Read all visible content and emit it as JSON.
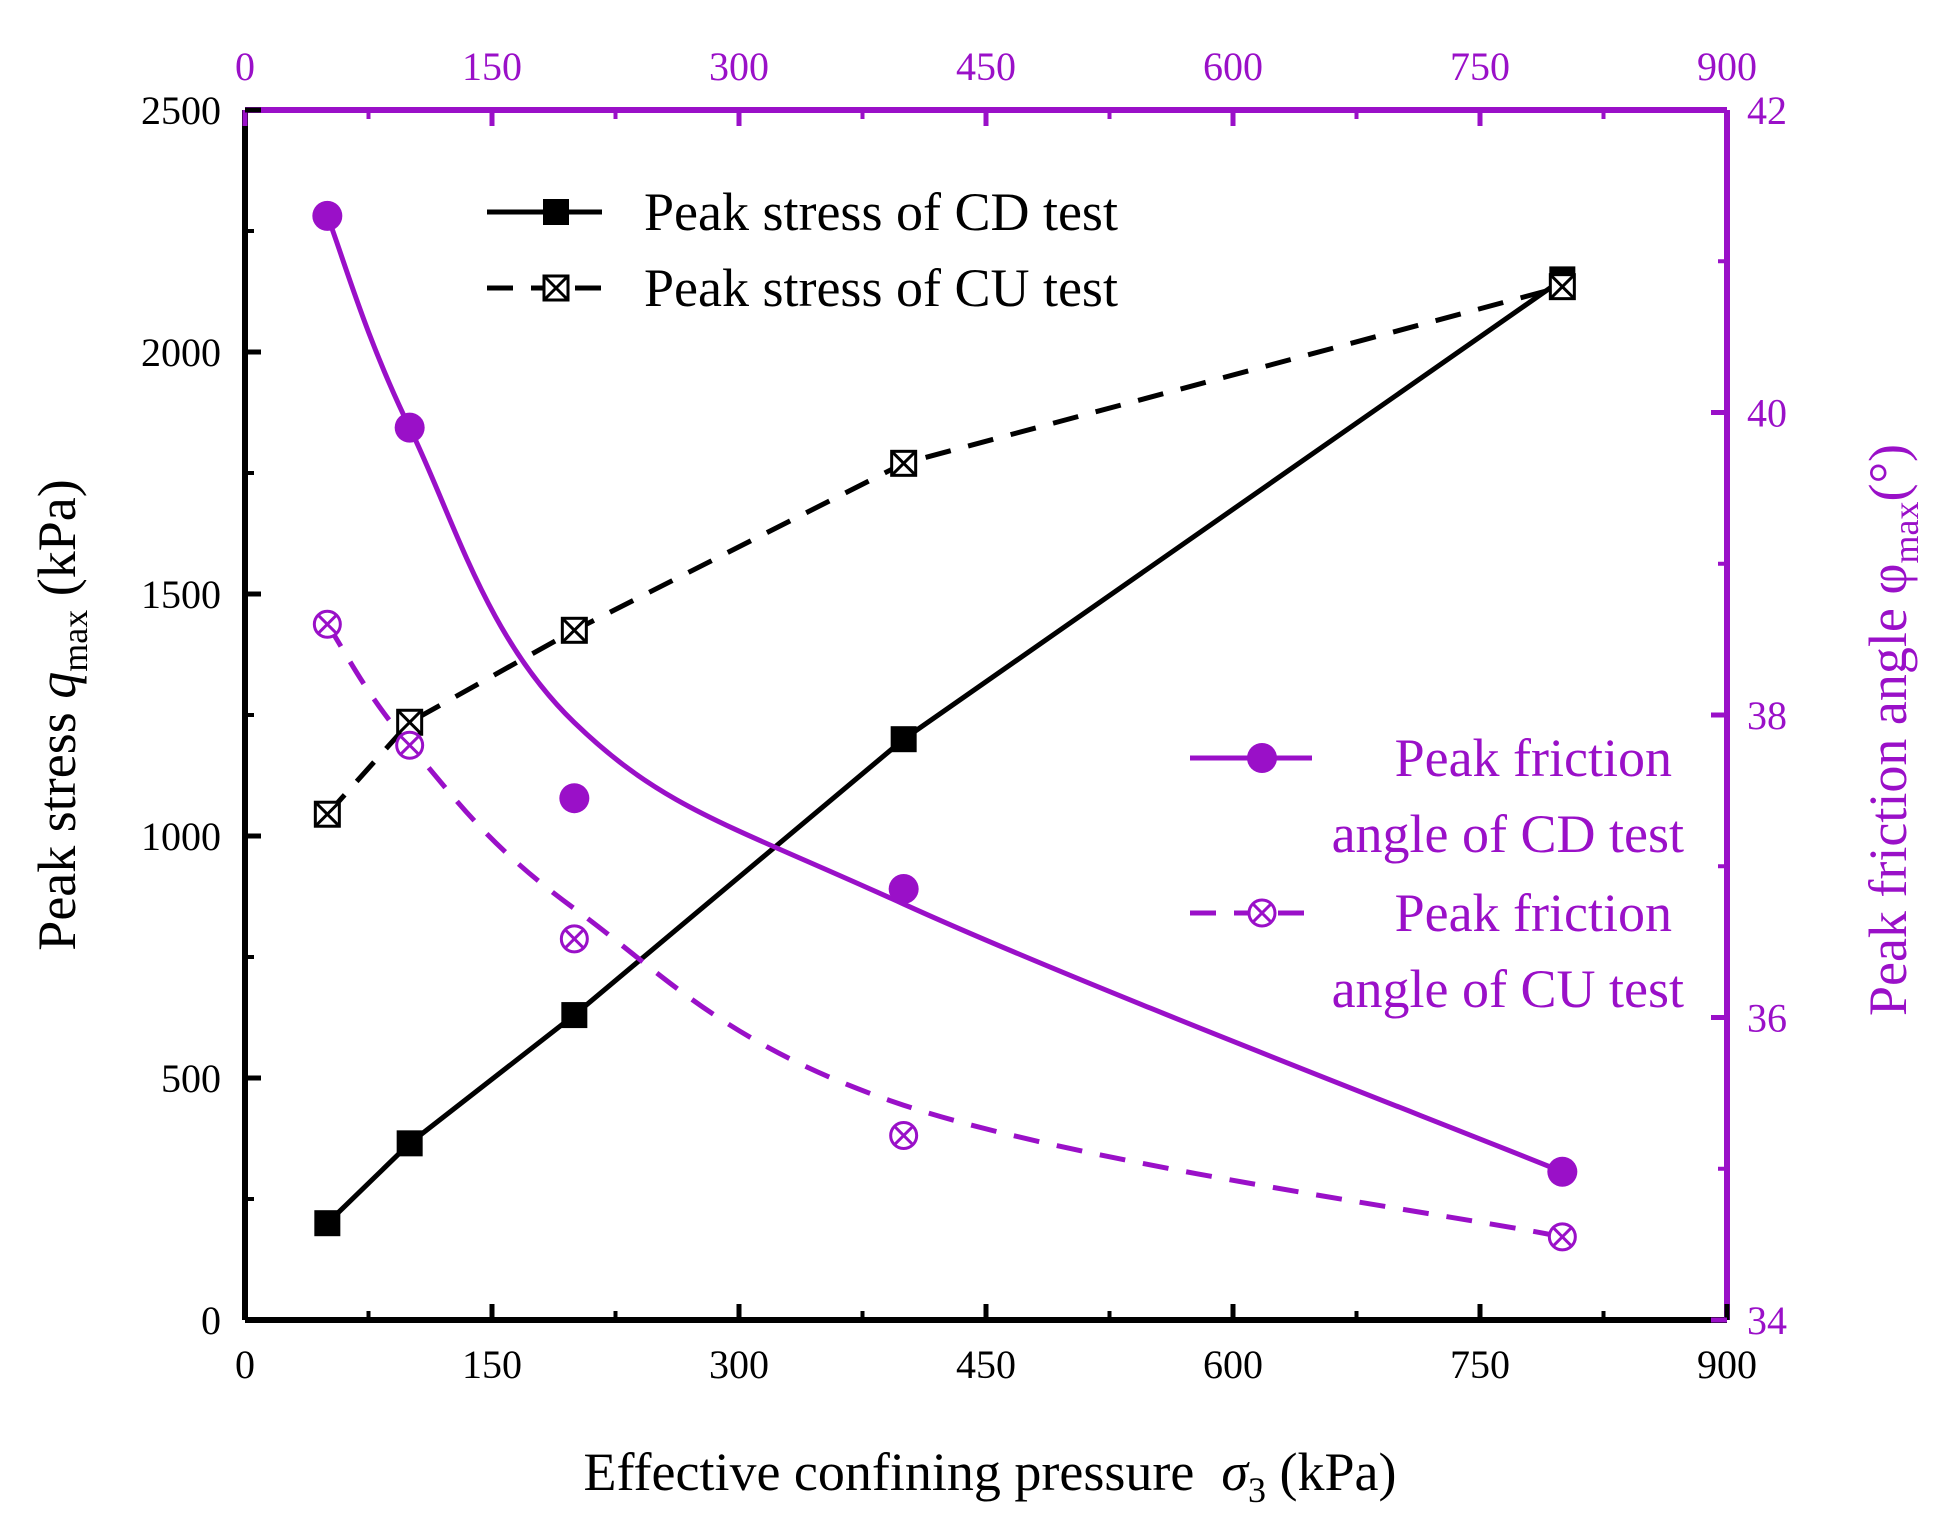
{
  "chart_data": {
    "type": "line",
    "colors": {
      "black": "#000000",
      "purple": "#9a10c8"
    },
    "x_axis": {
      "label_prefix": "Effective confining pressure",
      "label_symbol": "σ",
      "label_sub": "3",
      "label_suffix": "(kPa)",
      "range": [
        0,
        900
      ],
      "ticks": [
        "0",
        "150",
        "300",
        "450",
        "600",
        "750",
        "900"
      ]
    },
    "x_top_axis": {
      "range": [
        0,
        900
      ],
      "ticks": [
        "0",
        "150",
        "300",
        "450",
        "600",
        "750",
        "900"
      ]
    },
    "y_left_axis": {
      "label_prefix": "Peak stress",
      "label_symbol": "q",
      "label_sub": "max",
      "label_suffix": "(kPa)",
      "range": [
        0,
        2500
      ],
      "ticks": [
        "0",
        "500",
        "1000",
        "1500",
        "2000",
        "2500"
      ]
    },
    "y_right_axis": {
      "label_prefix": "Peak friction angle φ",
      "label_sub": "max",
      "label_suffix": "(°)",
      "range": [
        34,
        42
      ],
      "ticks": [
        "34",
        "36",
        "38",
        "40",
        "42"
      ]
    },
    "x": [
      50,
      100,
      200,
      400,
      800
    ],
    "series": [
      {
        "name": "Peak stress of CD test",
        "axis": "left",
        "color": "#000000",
        "dash": "solid",
        "marker": "square",
        "values": [
          200,
          365,
          630,
          1200,
          2150
        ]
      },
      {
        "name": "Peak stress of CU test",
        "axis": "left",
        "color": "#000000",
        "dash": "dashed",
        "marker": "boxed-x",
        "values": [
          1045,
          1235,
          1425,
          1770,
          2135
        ]
      },
      {
        "name": "Peak friction angle of CD test",
        "axis": "right",
        "color": "#9a10c8",
        "dash": "solid",
        "marker": "circle",
        "values": [
          41.3,
          39.9,
          37.45,
          36.85,
          34.98
        ]
      },
      {
        "name": "Peak friction angle of CU test",
        "axis": "right",
        "color": "#9a10c8",
        "dash": "dashed",
        "marker": "circled-x",
        "values": [
          38.6,
          37.8,
          36.52,
          35.22,
          34.55
        ]
      }
    ],
    "legend": {
      "top_left_entries": [
        "Peak stress of CD test",
        "Peak stress of CU test"
      ],
      "right_entries": [
        [
          "Peak friction",
          "angle of CD test"
        ],
        [
          "Peak friction",
          "angle of CU test"
        ]
      ]
    }
  }
}
